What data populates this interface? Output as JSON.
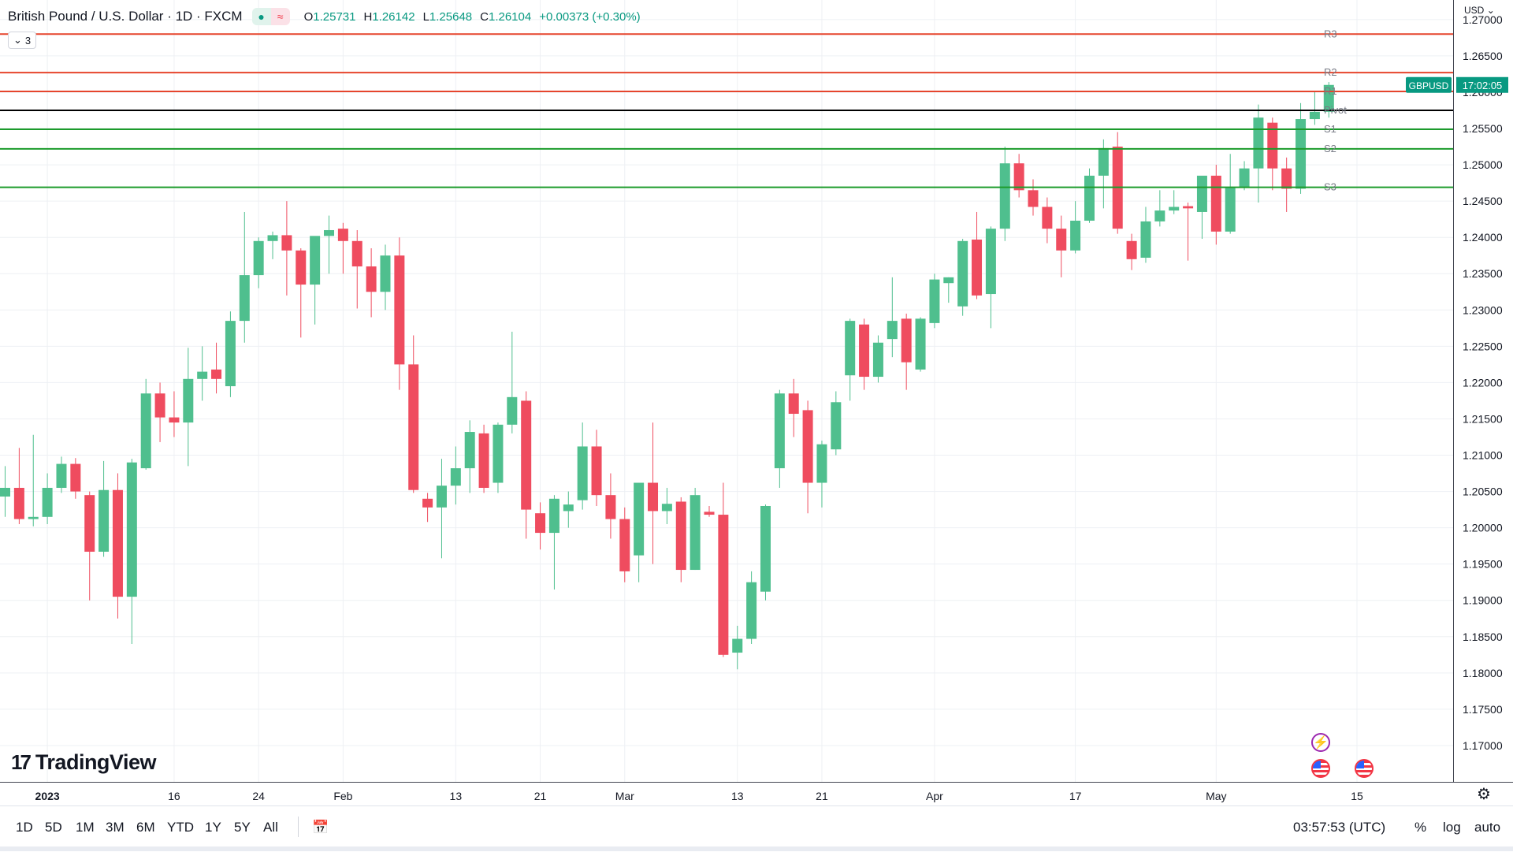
{
  "header": {
    "title": "British Pound / U.S. Dollar · 1D · FXCM",
    "toggle1_icon": "dot-icon",
    "toggle2_icon": "wave-icon",
    "ohlc": [
      {
        "label": "O",
        "value": "1.25731"
      },
      {
        "label": "H",
        "value": "1.26142"
      },
      {
        "label": "L",
        "value": "1.25648"
      },
      {
        "label": "C",
        "value": "1.26104"
      }
    ],
    "change": "+0.00373 (+0.30%)",
    "indicator_count": "3"
  },
  "price_scale": {
    "currency": "USD",
    "ticks": [
      "1.27000",
      "1.26500",
      "1.26000",
      "1.25500",
      "1.25000",
      "1.24500",
      "1.24000",
      "1.23500",
      "1.23000",
      "1.22500",
      "1.22000",
      "1.21500",
      "1.21000",
      "1.20500",
      "1.20000",
      "1.19500",
      "1.19000",
      "1.18500",
      "1.18000",
      "1.17500",
      "1.17000"
    ],
    "symbol_tag": "GBPUSD",
    "countdown_tag": "17:02:05"
  },
  "colors": {
    "up": "#4fbf8e",
    "down": "#ef4c5f",
    "resistance": "#e6452d",
    "support": "#1c9b2b",
    "pivot": "#000000",
    "grid": "#eef0f4",
    "tag_bg": "#089981"
  },
  "time_axis": {
    "labels": [
      "2023",
      "16",
      "24",
      "Feb",
      "13",
      "21",
      "Mar",
      "13",
      "21",
      "Apr",
      "17",
      "May",
      "15"
    ]
  },
  "bottom_bar": {
    "timeframes": [
      "1D",
      "5D",
      "1M",
      "3M",
      "6M",
      "YTD",
      "1Y",
      "5Y",
      "All"
    ],
    "compare_icon": "calendar-range-icon",
    "clock": "03:57:53 (UTC)",
    "percent": "%",
    "log": "log",
    "auto": "auto"
  },
  "logo": {
    "text": "TradingView"
  },
  "chart_data": {
    "type": "candlestick",
    "title": "British Pound / U.S. Dollar · 1D · FXCM",
    "ylim": [
      1.165,
      1.2727
    ],
    "y_ticks": [
      1.17,
      1.175,
      1.18,
      1.185,
      1.19,
      1.195,
      1.2,
      1.205,
      1.21,
      1.215,
      1.22,
      1.225,
      1.23,
      1.235,
      1.24,
      1.245,
      1.25,
      1.255,
      1.26,
      1.265,
      1.27
    ],
    "x_tick_labels": [
      "2023",
      "16",
      "24",
      "Feb",
      "13",
      "21",
      "Mar",
      "13",
      "21",
      "Apr",
      "17",
      "May",
      "15"
    ],
    "x_tick_index": [
      3,
      12,
      18,
      24,
      32,
      38,
      44,
      52,
      58,
      66,
      76,
      86,
      96
    ],
    "candles": [
      {
        "o": 1.2043,
        "h": 1.2085,
        "l": 1.2015,
        "c": 1.2055
      },
      {
        "o": 1.2055,
        "h": 1.211,
        "l": 1.2005,
        "c": 1.2012
      },
      {
        "o": 1.2012,
        "h": 1.2128,
        "l": 1.2002,
        "c": 1.2015
      },
      {
        "o": 1.2015,
        "h": 1.2075,
        "l": 1.2005,
        "c": 1.2055
      },
      {
        "o": 1.2055,
        "h": 1.2098,
        "l": 1.2048,
        "c": 1.2088
      },
      {
        "o": 1.2088,
        "h": 1.2096,
        "l": 1.204,
        "c": 1.205
      },
      {
        "o": 1.2045,
        "h": 1.205,
        "l": 1.19,
        "c": 1.1967
      },
      {
        "o": 1.1967,
        "h": 1.2092,
        "l": 1.196,
        "c": 1.2052
      },
      {
        "o": 1.2052,
        "h": 1.2075,
        "l": 1.1875,
        "c": 1.1905
      },
      {
        "o": 1.1905,
        "h": 1.2095,
        "l": 1.184,
        "c": 1.209
      },
      {
        "o": 1.2082,
        "h": 1.2205,
        "l": 1.208,
        "c": 1.2185
      },
      {
        "o": 1.2185,
        "h": 1.22,
        "l": 1.2118,
        "c": 1.2152
      },
      {
        "o": 1.2152,
        "h": 1.2188,
        "l": 1.2125,
        "c": 1.2145
      },
      {
        "o": 1.2145,
        "h": 1.2248,
        "l": 1.2085,
        "c": 1.2205
      },
      {
        "o": 1.2205,
        "h": 1.225,
        "l": 1.2175,
        "c": 1.2215
      },
      {
        "o": 1.2218,
        "h": 1.2255,
        "l": 1.2185,
        "c": 1.2205
      },
      {
        "o": 1.2195,
        "h": 1.2298,
        "l": 1.218,
        "c": 1.2285
      },
      {
        "o": 1.2285,
        "h": 1.2435,
        "l": 1.2255,
        "c": 1.2348
      },
      {
        "o": 1.2348,
        "h": 1.24,
        "l": 1.233,
        "c": 1.2395
      },
      {
        "o": 1.2395,
        "h": 1.2408,
        "l": 1.237,
        "c": 1.2403
      },
      {
        "o": 1.2403,
        "h": 1.245,
        "l": 1.232,
        "c": 1.2382
      },
      {
        "o": 1.2382,
        "h": 1.2385,
        "l": 1.2262,
        "c": 1.2335
      },
      {
        "o": 1.2335,
        "h": 1.24,
        "l": 1.228,
        "c": 1.2402
      },
      {
        "o": 1.2402,
        "h": 1.243,
        "l": 1.235,
        "c": 1.241
      },
      {
        "o": 1.2412,
        "h": 1.242,
        "l": 1.235,
        "c": 1.2395
      },
      {
        "o": 1.2395,
        "h": 1.241,
        "l": 1.2302,
        "c": 1.236
      },
      {
        "o": 1.236,
        "h": 1.2385,
        "l": 1.229,
        "c": 1.2325
      },
      {
        "o": 1.2325,
        "h": 1.239,
        "l": 1.23,
        "c": 1.2375
      },
      {
        "o": 1.2375,
        "h": 1.24,
        "l": 1.219,
        "c": 1.2225
      },
      {
        "o": 1.2225,
        "h": 1.2265,
        "l": 1.2048,
        "c": 1.2052
      },
      {
        "o": 1.204,
        "h": 1.2048,
        "l": 1.2008,
        "c": 1.2028
      },
      {
        "o": 1.2028,
        "h": 1.2095,
        "l": 1.1958,
        "c": 1.2058
      },
      {
        "o": 1.2058,
        "h": 1.2112,
        "l": 1.2032,
        "c": 1.2082
      },
      {
        "o": 1.2082,
        "h": 1.2148,
        "l": 1.2048,
        "c": 1.2132
      },
      {
        "o": 1.213,
        "h": 1.2142,
        "l": 1.2048,
        "c": 1.2055
      },
      {
        "o": 1.2062,
        "h": 1.2145,
        "l": 1.2048,
        "c": 1.2142
      },
      {
        "o": 1.2142,
        "h": 1.227,
        "l": 1.213,
        "c": 1.218
      },
      {
        "o": 1.2175,
        "h": 1.2188,
        "l": 1.1985,
        "c": 1.2025
      },
      {
        "o": 1.202,
        "h": 1.2035,
        "l": 1.197,
        "c": 1.1993
      },
      {
        "o": 1.1993,
        "h": 1.2045,
        "l": 1.1915,
        "c": 1.204
      },
      {
        "o": 1.2023,
        "h": 1.205,
        "l": 1.2,
        "c": 1.2032
      },
      {
        "o": 1.2038,
        "h": 1.2145,
        "l": 1.2025,
        "c": 1.2112
      },
      {
        "o": 1.2112,
        "h": 1.2135,
        "l": 1.203,
        "c": 1.2045
      },
      {
        "o": 1.2045,
        "h": 1.2075,
        "l": 1.1985,
        "c": 1.2012
      },
      {
        "o": 1.2012,
        "h": 1.2028,
        "l": 1.1925,
        "c": 1.194
      },
      {
        "o": 1.1962,
        "h": 1.2062,
        "l": 1.1925,
        "c": 1.2062
      },
      {
        "o": 1.2062,
        "h": 1.2145,
        "l": 1.195,
        "c": 1.2023
      },
      {
        "o": 1.2023,
        "h": 1.2055,
        "l": 1.2005,
        "c": 1.2033
      },
      {
        "o": 1.2036,
        "h": 1.2042,
        "l": 1.1925,
        "c": 1.1942
      },
      {
        "o": 1.1942,
        "h": 1.2055,
        "l": 1.1942,
        "c": 1.2045
      },
      {
        "o": 1.2022,
        "h": 1.203,
        "l": 1.2015,
        "c": 1.2018
      },
      {
        "o": 1.2018,
        "h": 1.2062,
        "l": 1.1822,
        "c": 1.1825
      },
      {
        "o": 1.1828,
        "h": 1.1865,
        "l": 1.1805,
        "c": 1.1847
      },
      {
        "o": 1.1847,
        "h": 1.194,
        "l": 1.184,
        "c": 1.1925
      },
      {
        "o": 1.1912,
        "h": 1.2032,
        "l": 1.19,
        "c": 1.203
      },
      {
        "o": 1.2082,
        "h": 1.219,
        "l": 1.2055,
        "c": 1.2185
      },
      {
        "o": 1.2185,
        "h": 1.2205,
        "l": 1.2125,
        "c": 1.2157
      },
      {
        "o": 1.2162,
        "h": 1.2175,
        "l": 1.202,
        "c": 1.2062
      },
      {
        "o": 1.2062,
        "h": 1.212,
        "l": 1.2028,
        "c": 1.2115
      },
      {
        "o": 1.2108,
        "h": 1.2188,
        "l": 1.21,
        "c": 1.2173
      },
      {
        "o": 1.221,
        "h": 1.2288,
        "l": 1.2175,
        "c": 1.2285
      },
      {
        "o": 1.228,
        "h": 1.2288,
        "l": 1.219,
        "c": 1.2208
      },
      {
        "o": 1.2208,
        "h": 1.2265,
        "l": 1.22,
        "c": 1.2255
      },
      {
        "o": 1.226,
        "h": 1.2345,
        "l": 1.2235,
        "c": 1.2285
      },
      {
        "o": 1.2288,
        "h": 1.2295,
        "l": 1.219,
        "c": 1.2228
      },
      {
        "o": 1.2218,
        "h": 1.229,
        "l": 1.2215,
        "c": 1.2288
      },
      {
        "o": 1.2282,
        "h": 1.235,
        "l": 1.2275,
        "c": 1.2342
      },
      {
        "o": 1.2337,
        "h": 1.2345,
        "l": 1.231,
        "c": 1.2345
      },
      {
        "o": 1.2305,
        "h": 1.2398,
        "l": 1.2292,
        "c": 1.2395
      },
      {
        "o": 1.2397,
        "h": 1.2435,
        "l": 1.2315,
        "c": 1.232
      },
      {
        "o": 1.2322,
        "h": 1.2415,
        "l": 1.2275,
        "c": 1.2412
      },
      {
        "o": 1.2412,
        "h": 1.2525,
        "l": 1.2395,
        "c": 1.2502
      },
      {
        "o": 1.2502,
        "h": 1.2515,
        "l": 1.2455,
        "c": 1.2465
      },
      {
        "o": 1.2465,
        "h": 1.248,
        "l": 1.243,
        "c": 1.2442
      },
      {
        "o": 1.2442,
        "h": 1.2455,
        "l": 1.2392,
        "c": 1.2412
      },
      {
        "o": 1.2412,
        "h": 1.243,
        "l": 1.2345,
        "c": 1.2382
      },
      {
        "o": 1.2382,
        "h": 1.245,
        "l": 1.2378,
        "c": 1.2423
      },
      {
        "o": 1.2423,
        "h": 1.2495,
        "l": 1.242,
        "c": 1.2485
      },
      {
        "o": 1.2485,
        "h": 1.2535,
        "l": 1.244,
        "c": 1.2523
      },
      {
        "o": 1.2525,
        "h": 1.2545,
        "l": 1.2405,
        "c": 1.2412
      },
      {
        "o": 1.2395,
        "h": 1.2405,
        "l": 1.2355,
        "c": 1.237
      },
      {
        "o": 1.2372,
        "h": 1.2442,
        "l": 1.2365,
        "c": 1.2422
      },
      {
        "o": 1.2422,
        "h": 1.2465,
        "l": 1.2415,
        "c": 1.2437
      },
      {
        "o": 1.2437,
        "h": 1.2465,
        "l": 1.2432,
        "c": 1.2442
      },
      {
        "o": 1.2443,
        "h": 1.2448,
        "l": 1.2368,
        "c": 1.244
      },
      {
        "o": 1.2435,
        "h": 1.2478,
        "l": 1.2398,
        "c": 1.2485
      },
      {
        "o": 1.2485,
        "h": 1.25,
        "l": 1.239,
        "c": 1.2408
      },
      {
        "o": 1.2408,
        "h": 1.2515,
        "l": 1.2405,
        "c": 1.2468
      },
      {
        "o": 1.2468,
        "h": 1.2505,
        "l": 1.2465,
        "c": 1.2495
      },
      {
        "o": 1.2495,
        "h": 1.2583,
        "l": 1.2448,
        "c": 1.2565
      },
      {
        "o": 1.2558,
        "h": 1.2565,
        "l": 1.2465,
        "c": 1.2495
      },
      {
        "o": 1.2495,
        "h": 1.251,
        "l": 1.2435,
        "c": 1.2467
      },
      {
        "o": 1.2467,
        "h": 1.2585,
        "l": 1.246,
        "c": 1.2563
      },
      {
        "o": 1.2563,
        "h": 1.26,
        "l": 1.2555,
        "c": 1.2573
      },
      {
        "o": 1.2573,
        "h": 1.2614,
        "l": 1.2565,
        "c": 1.261
      }
    ],
    "levels": [
      {
        "name": "R3",
        "value": 1.268,
        "kind": "resistance"
      },
      {
        "name": "R2",
        "value": 1.2627,
        "kind": "resistance"
      },
      {
        "name": "R1",
        "value": 1.2601,
        "kind": "resistance"
      },
      {
        "name": "Pivot",
        "value": 1.2575,
        "kind": "pivot"
      },
      {
        "name": "S1",
        "value": 1.2549,
        "kind": "support"
      },
      {
        "name": "S2",
        "value": 1.2522,
        "kind": "support"
      },
      {
        "name": "S3",
        "value": 1.2469,
        "kind": "support"
      }
    ],
    "last_price": 1.261
  }
}
